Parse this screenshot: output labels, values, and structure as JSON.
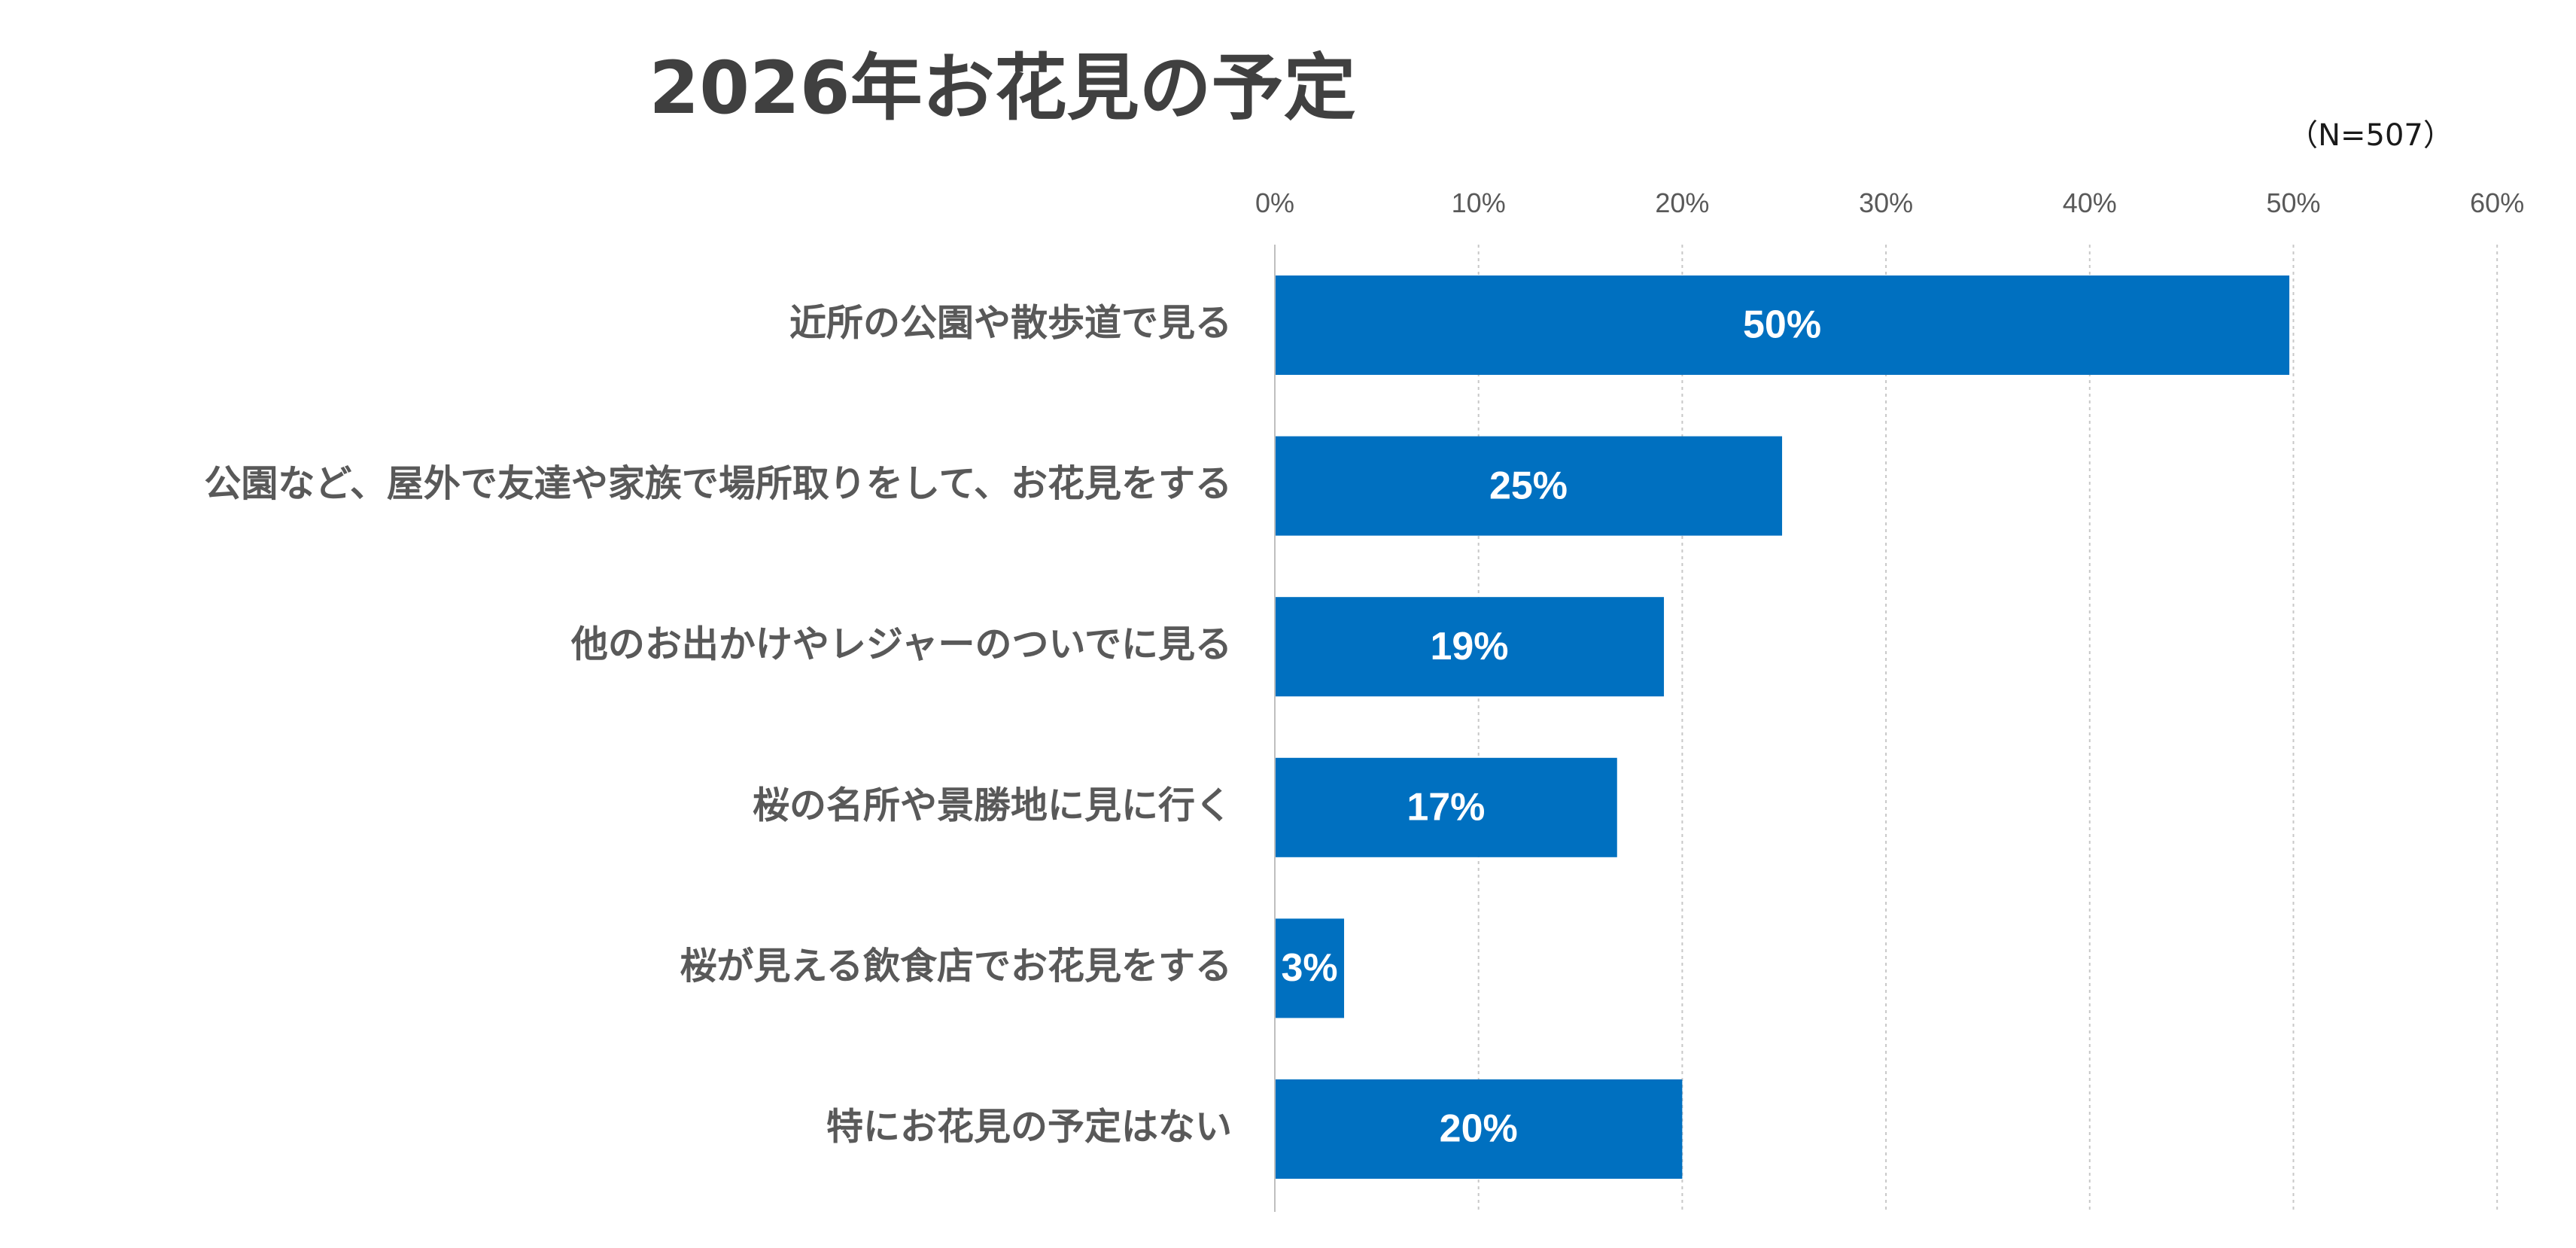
{
  "chart_data": {
    "type": "bar",
    "orientation": "horizontal",
    "title": "2026年お花見の予定",
    "sample_note": "（N=507）",
    "xlabel": "",
    "ylabel": "",
    "xlim": [
      0,
      60
    ],
    "x_ticks": [
      0,
      10,
      20,
      30,
      40,
      50,
      60
    ],
    "x_tick_labels": [
      "0%",
      "10%",
      "20%",
      "30%",
      "40%",
      "50%",
      "60%"
    ],
    "grid": true,
    "legend": "none",
    "categories": [
      "近所の公園や散歩道で見る",
      "公園など、屋外で友達や家族で場所取りをして、お花見をする",
      "他のお出かけやレジャーのついでに見る",
      "桜の名所や景勝地に見に行く",
      "桜が見える飲食店でお花見をする",
      "特にお花見の予定はない"
    ],
    "values": [
      49.8,
      24.9,
      19.1,
      16.8,
      3.4,
      20.0
    ],
    "data_labels": [
      "50%",
      "25%",
      "19%",
      "17%",
      "3%",
      "20%"
    ],
    "bar_color": "#0070C0"
  }
}
